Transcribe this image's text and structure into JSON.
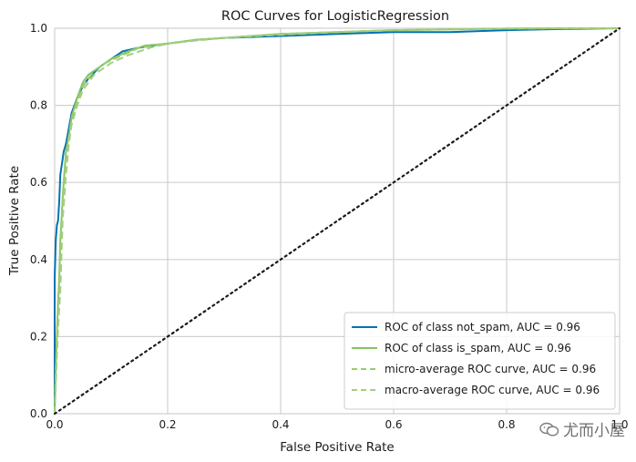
{
  "chart_data": {
    "type": "line",
    "title": "ROC Curves for LogisticRegression",
    "xlabel": "False Positive Rate",
    "ylabel": "True Positive Rate",
    "xlim": [
      0,
      1
    ],
    "ylim": [
      0,
      1
    ],
    "xticks": [
      "0.0",
      "0.2",
      "0.4",
      "0.6",
      "0.8",
      "1.0"
    ],
    "yticks": [
      "0.0",
      "0.2",
      "0.4",
      "0.6",
      "0.8",
      "1.0"
    ],
    "grid": true,
    "legend_position": "lower-right",
    "series": [
      {
        "name": "ROC of class not_spam, AUC = 0.96",
        "color": "#0072B2",
        "style": "solid",
        "x": [
          0,
          0,
          0.002,
          0.004,
          0.006,
          0.008,
          0.01,
          0.013,
          0.016,
          0.02,
          0.025,
          0.03,
          0.04,
          0.05,
          0.06,
          0.08,
          0.1,
          0.12,
          0.15,
          0.2,
          0.25,
          0.3,
          0.4,
          0.5,
          0.6,
          0.7,
          0.8,
          0.9,
          1.0
        ],
        "y": [
          0,
          0.35,
          0.45,
          0.49,
          0.5,
          0.55,
          0.62,
          0.65,
          0.68,
          0.7,
          0.74,
          0.78,
          0.82,
          0.85,
          0.87,
          0.9,
          0.92,
          0.94,
          0.95,
          0.96,
          0.97,
          0.975,
          0.98,
          0.985,
          0.99,
          0.99,
          0.995,
          0.998,
          1.0
        ]
      },
      {
        "name": "ROC of class is_spam, AUC = 0.96",
        "color": "#8CC168",
        "style": "solid",
        "x": [
          0,
          0.002,
          0.005,
          0.008,
          0.01,
          0.015,
          0.02,
          0.025,
          0.03,
          0.04,
          0.05,
          0.06,
          0.08,
          0.1,
          0.13,
          0.16,
          0.2,
          0.25,
          0.3,
          0.4,
          0.5,
          0.6,
          0.7,
          0.8,
          0.9,
          1.0
        ],
        "y": [
          0,
          0.12,
          0.25,
          0.35,
          0.45,
          0.58,
          0.68,
          0.72,
          0.77,
          0.82,
          0.86,
          0.88,
          0.9,
          0.92,
          0.94,
          0.955,
          0.96,
          0.97,
          0.975,
          0.985,
          0.99,
          0.995,
          0.997,
          0.999,
          1.0,
          1.0
        ]
      },
      {
        "name": "micro-average ROC curve, AUC = 0.96",
        "color": "#9ACD6E",
        "style": "dashed",
        "x": [
          0,
          0.002,
          0.005,
          0.008,
          0.012,
          0.016,
          0.02,
          0.025,
          0.03,
          0.04,
          0.05,
          0.07,
          0.09,
          0.12,
          0.15,
          0.2,
          0.25,
          0.3,
          0.4,
          0.5,
          0.6,
          0.7,
          0.8,
          0.9,
          1.0
        ],
        "y": [
          0,
          0.1,
          0.2,
          0.3,
          0.48,
          0.6,
          0.67,
          0.72,
          0.76,
          0.81,
          0.85,
          0.89,
          0.91,
          0.93,
          0.95,
          0.96,
          0.97,
          0.975,
          0.985,
          0.99,
          0.995,
          0.997,
          0.999,
          1.0,
          1.0
        ]
      },
      {
        "name": "macro-average ROC curve, AUC = 0.96",
        "color": "#A3CF7F",
        "style": "dashed",
        "x": [
          0,
          0.003,
          0.006,
          0.01,
          0.014,
          0.02,
          0.025,
          0.03,
          0.04,
          0.05,
          0.07,
          0.1,
          0.13,
          0.17,
          0.2,
          0.25,
          0.3,
          0.4,
          0.5,
          0.6,
          0.7,
          0.8,
          0.9,
          1.0
        ],
        "y": [
          0,
          0.12,
          0.22,
          0.32,
          0.5,
          0.62,
          0.7,
          0.75,
          0.8,
          0.84,
          0.88,
          0.91,
          0.93,
          0.95,
          0.96,
          0.968,
          0.975,
          0.983,
          0.99,
          0.995,
          0.997,
          0.999,
          1.0,
          1.0
        ]
      }
    ],
    "reference_line": {
      "x": [
        0,
        1
      ],
      "y": [
        0,
        1
      ],
      "color": "#1a1a1a",
      "style": "dotted"
    }
  },
  "watermark": {
    "text": "尤而小屋",
    "icon": "wechat-icon"
  }
}
